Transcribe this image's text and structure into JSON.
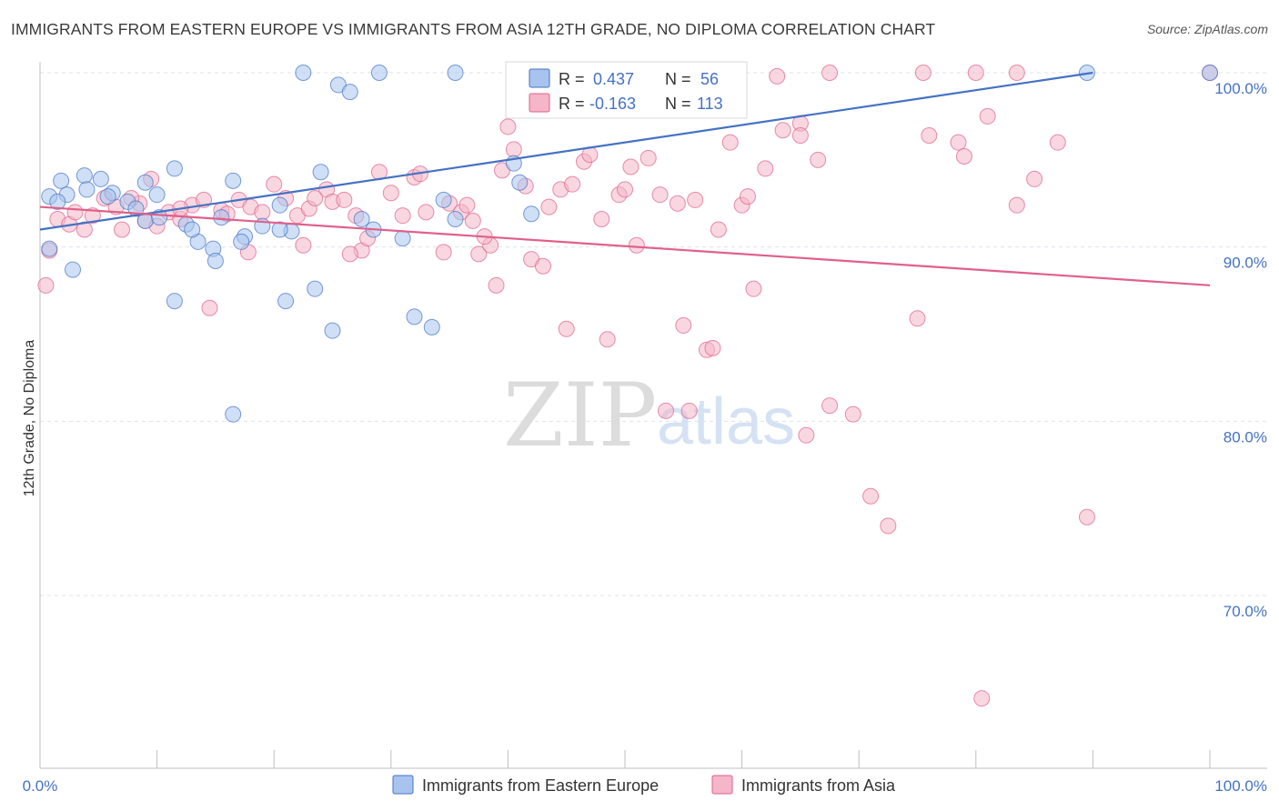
{
  "title": "IMMIGRANTS FROM EASTERN EUROPE VS IMMIGRANTS FROM ASIA 12TH GRADE, NO DIPLOMA CORRELATION CHART",
  "source": "Source: ZipAtlas.com",
  "colors": {
    "blue": "#4472c4",
    "blue_fill": "#a8c4ee",
    "pink": "#e0608a",
    "pink_fill": "#f4b6c8",
    "grid": "#dde3ea"
  },
  "legend": {
    "rows": [
      {
        "r_label": "R =",
        "r_value": "0.437",
        "n_label": "N =",
        "n_value": "56"
      },
      {
        "r_label": "R =",
        "r_value": "-0.163",
        "n_label": "N =",
        "n_value": "113"
      }
    ]
  },
  "watermark": {
    "zip": "ZIP",
    "atlas": "atlas"
  },
  "chart_data": {
    "type": "scatter",
    "xlabel": "",
    "ylabel": "12th Grade, No Diploma",
    "xlim": [
      0,
      100
    ],
    "ylim": [
      60,
      100
    ],
    "x_ticks": [
      "0.0%",
      "100.0%"
    ],
    "y_ticks": [
      {
        "value": 100,
        "label": "100.0%"
      },
      {
        "value": 90,
        "label": "90.0%"
      },
      {
        "value": 80,
        "label": "80.0%"
      },
      {
        "value": 70,
        "label": "70.0%"
      }
    ],
    "grid": true,
    "legend_position": "bottom-center",
    "series": [
      {
        "name": "Immigrants from Eastern Europe",
        "color": "#4472c4",
        "trend": {
          "x": [
            0,
            90
          ],
          "y": [
            91.0,
            100.0
          ]
        },
        "points": [
          [
            0.8,
            92.9
          ],
          [
            1.8,
            93.8
          ],
          [
            2.3,
            93.0
          ],
          [
            3.8,
            94.1
          ],
          [
            1.5,
            92.6
          ],
          [
            4.0,
            93.3
          ],
          [
            5.2,
            93.9
          ],
          [
            6.2,
            93.1
          ],
          [
            7.5,
            92.6
          ],
          [
            8.2,
            92.2
          ],
          [
            9.0,
            93.7
          ],
          [
            9.0,
            91.5
          ],
          [
            10.0,
            93.0
          ],
          [
            11.5,
            94.5
          ],
          [
            12.5,
            91.3
          ],
          [
            13.5,
            90.3
          ],
          [
            14.8,
            89.9
          ],
          [
            15.5,
            91.7
          ],
          [
            16.5,
            93.8
          ],
          [
            17.5,
            90.6
          ],
          [
            17.2,
            90.3
          ],
          [
            19.0,
            91.2
          ],
          [
            20.5,
            92.4
          ],
          [
            21.5,
            90.9
          ],
          [
            20.5,
            91.0
          ],
          [
            11.5,
            86.9
          ],
          [
            16.5,
            80.4
          ],
          [
            21.0,
            86.9
          ],
          [
            22.5,
            100.0
          ],
          [
            25.5,
            99.3
          ],
          [
            26.5,
            98.9
          ],
          [
            24.0,
            94.3
          ],
          [
            23.5,
            87.6
          ],
          [
            25.0,
            85.2
          ],
          [
            27.5,
            91.6
          ],
          [
            28.5,
            91.0
          ],
          [
            31.0,
            90.5
          ],
          [
            33.5,
            85.4
          ],
          [
            32.0,
            86.0
          ],
          [
            34.5,
            92.7
          ],
          [
            35.5,
            91.6
          ],
          [
            40.5,
            94.8
          ],
          [
            41.0,
            93.7
          ],
          [
            44.0,
            100.0
          ],
          [
            46.0,
            100.0
          ],
          [
            35.5,
            100.0
          ],
          [
            29.0,
            100.0
          ],
          [
            0.8,
            89.9
          ],
          [
            2.8,
            88.7
          ],
          [
            5.8,
            92.9
          ],
          [
            10.2,
            91.7
          ],
          [
            13.0,
            91.0
          ],
          [
            15.0,
            89.2
          ],
          [
            42.0,
            91.9
          ],
          [
            89.5,
            100.0
          ],
          [
            100.0,
            100.0
          ]
        ]
      },
      {
        "name": "Immigrants from Asia",
        "color": "#e0608a",
        "trend": {
          "x": [
            0,
            100
          ],
          "y": [
            92.3,
            87.8
          ]
        },
        "points": [
          [
            0.5,
            87.8
          ],
          [
            0.8,
            89.8
          ],
          [
            1.5,
            91.6
          ],
          [
            2.5,
            91.3
          ],
          [
            3.0,
            92.0
          ],
          [
            4.5,
            91.8
          ],
          [
            5.5,
            92.8
          ],
          [
            6.5,
            92.3
          ],
          [
            7.0,
            91.0
          ],
          [
            8.5,
            92.5
          ],
          [
            9.0,
            91.5
          ],
          [
            10.0,
            91.2
          ],
          [
            11.0,
            92.0
          ],
          [
            12.0,
            91.6
          ],
          [
            13.0,
            92.4
          ],
          [
            14.0,
            92.7
          ],
          [
            14.5,
            86.5
          ],
          [
            15.5,
            92.1
          ],
          [
            16.0,
            91.9
          ],
          [
            17.0,
            92.7
          ],
          [
            18.0,
            92.3
          ],
          [
            19.0,
            92.0
          ],
          [
            20.0,
            93.6
          ],
          [
            21.0,
            92.8
          ],
          [
            22.0,
            91.8
          ],
          [
            22.5,
            90.1
          ],
          [
            23.0,
            92.2
          ],
          [
            24.5,
            93.3
          ],
          [
            25.0,
            92.6
          ],
          [
            26.0,
            92.7
          ],
          [
            27.5,
            89.8
          ],
          [
            28.0,
            90.5
          ],
          [
            29.0,
            94.3
          ],
          [
            30.0,
            93.1
          ],
          [
            31.0,
            91.8
          ],
          [
            32.0,
            94.0
          ],
          [
            33.0,
            92.0
          ],
          [
            34.5,
            89.7
          ],
          [
            35.0,
            92.5
          ],
          [
            36.0,
            92.0
          ],
          [
            37.0,
            91.5
          ],
          [
            37.5,
            89.6
          ],
          [
            38.5,
            90.1
          ],
          [
            39.0,
            87.8
          ],
          [
            39.5,
            94.4
          ],
          [
            40.0,
            96.9
          ],
          [
            40.5,
            95.6
          ],
          [
            41.5,
            93.5
          ],
          [
            42.0,
            89.3
          ],
          [
            43.0,
            88.9
          ],
          [
            43.5,
            92.3
          ],
          [
            44.5,
            93.3
          ],
          [
            45.0,
            85.3
          ],
          [
            46.5,
            94.9
          ],
          [
            47.0,
            95.3
          ],
          [
            48.0,
            91.6
          ],
          [
            48.5,
            84.7
          ],
          [
            49.5,
            93.0
          ],
          [
            50.5,
            94.6
          ],
          [
            51.0,
            90.1
          ],
          [
            52.0,
            95.1
          ],
          [
            53.0,
            93.0
          ],
          [
            53.5,
            80.6
          ],
          [
            54.5,
            92.5
          ],
          [
            55.0,
            85.5
          ],
          [
            55.5,
            80.6
          ],
          [
            56.0,
            92.7
          ],
          [
            57.0,
            84.1
          ],
          [
            57.5,
            84.2
          ],
          [
            58.0,
            91.0
          ],
          [
            59.0,
            96.0
          ],
          [
            60.0,
            92.4
          ],
          [
            61.0,
            87.6
          ],
          [
            62.0,
            94.5
          ],
          [
            63.0,
            99.8
          ],
          [
            63.5,
            96.7
          ],
          [
            65.0,
            97.1
          ],
          [
            65.5,
            79.2
          ],
          [
            66.5,
            95.0
          ],
          [
            67.5,
            80.9
          ],
          [
            69.5,
            80.4
          ],
          [
            71.0,
            75.7
          ],
          [
            72.5,
            74.0
          ],
          [
            75.0,
            85.9
          ],
          [
            75.5,
            100.0
          ],
          [
            80.5,
            64.1
          ],
          [
            80.0,
            100.0
          ],
          [
            83.5,
            100.0
          ],
          [
            76.0,
            96.4
          ],
          [
            78.5,
            96.0
          ],
          [
            81.0,
            97.5
          ],
          [
            79.0,
            95.2
          ],
          [
            83.5,
            92.4
          ],
          [
            85.0,
            93.9
          ],
          [
            87.0,
            96.0
          ],
          [
            89.5,
            74.5
          ],
          [
            100.0,
            100.0
          ],
          [
            67.5,
            100.0
          ],
          [
            23.5,
            92.8
          ],
          [
            27.0,
            91.8
          ],
          [
            3.8,
            91.0
          ],
          [
            7.8,
            92.8
          ],
          [
            12.0,
            92.2
          ],
          [
            17.8,
            89.7
          ],
          [
            26.5,
            89.6
          ],
          [
            32.5,
            94.2
          ],
          [
            36.5,
            92.4
          ],
          [
            38.0,
            90.6
          ],
          [
            45.5,
            93.6
          ],
          [
            50.0,
            93.3
          ],
          [
            60.5,
            92.9
          ],
          [
            65.0,
            96.4
          ],
          [
            9.5,
            93.9
          ]
        ]
      }
    ]
  },
  "bottom_legend": [
    {
      "label": "Immigrants from Eastern Europe",
      "color": "#4472c4"
    },
    {
      "label": "Immigrants from Asia",
      "color": "#e0608a"
    }
  ]
}
